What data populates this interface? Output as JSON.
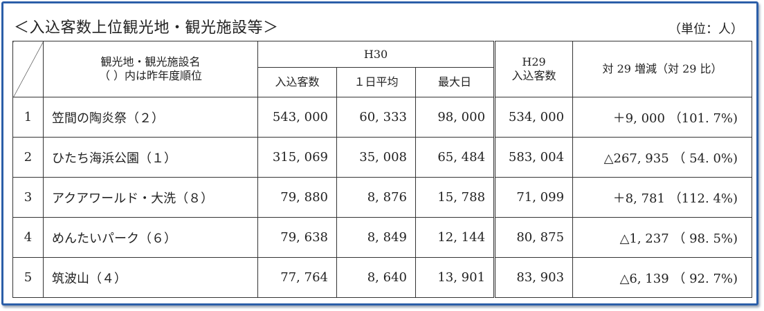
{
  "title": "＜入込客数上位観光地・観光施設等＞",
  "unit": "（単位：人）",
  "header": {
    "name_line1": "観光地・観光施設名",
    "name_line2": "（ ）内は昨年度順位",
    "h30": "H30",
    "h30_visitors": "入込客数",
    "h30_daily": "１日平均",
    "h30_max": "最大日",
    "h29_line1": "H29",
    "h29_line2": "入込客数",
    "diff": "対 29 増減（対 29 比）"
  },
  "rows": [
    {
      "rank": "1",
      "name": "笠間の陶炎祭（２）",
      "visitors": "543, 000",
      "daily": "60, 333",
      "max": "98, 000",
      "h29": "534, 000",
      "diff": "＋9, 000 （101. 7%)"
    },
    {
      "rank": "2",
      "name": "ひたち海浜公園（１）",
      "visitors": "315, 069",
      "daily": "35, 008",
      "max": "65, 484",
      "h29": "583, 004",
      "diff": "△267, 935 （ 54. 0%)"
    },
    {
      "rank": "3",
      "name": "アクアワールド・大洗（８）",
      "visitors": "79, 880",
      "daily": "8, 876",
      "max": "15, 788",
      "h29": "71, 099",
      "diff": "＋8, 781 （112. 4%)"
    },
    {
      "rank": "4",
      "name": "めんたいパーク（６）",
      "visitors": "79, 638",
      "daily": "8, 849",
      "max": "12, 144",
      "h29": "80, 875",
      "diff": "△1, 237 （ 98. 5%)"
    },
    {
      "rank": "5",
      "name": "筑波山（４）",
      "visitors": "77, 764",
      "daily": "8, 640",
      "max": "13, 901",
      "h29": "83, 903",
      "diff": "△6, 139 （ 92. 7%)"
    }
  ]
}
